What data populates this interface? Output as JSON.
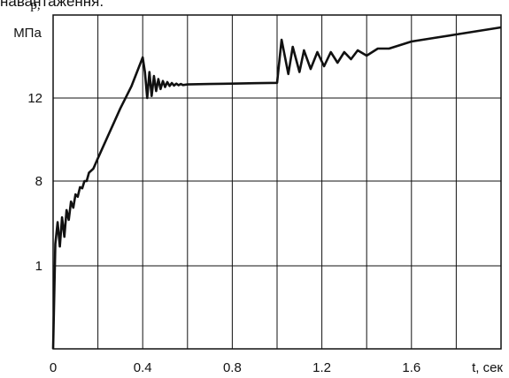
{
  "caption_fragment": "навантаження.",
  "chart_data": {
    "type": "line",
    "title": "",
    "xlabel": "t, сек",
    "ylabel": "p,",
    "ylabel_unit": "МПа",
    "xlim": [
      0,
      2.0
    ],
    "x_ticks": [
      "0",
      "0.4",
      "0.8",
      "1.2",
      "1.6"
    ],
    "y_ticks": [
      "1",
      "8",
      "12"
    ],
    "grid": true,
    "line_color": "#111111",
    "series": [
      {
        "values": [
          [
            0.0,
            0.0
          ],
          [
            0.01,
            2.8
          ],
          [
            0.02,
            4.6
          ],
          [
            0.03,
            2.6
          ],
          [
            0.04,
            5.0
          ],
          [
            0.05,
            3.4
          ],
          [
            0.06,
            5.6
          ],
          [
            0.07,
            4.8
          ],
          [
            0.08,
            6.3
          ],
          [
            0.09,
            5.8
          ],
          [
            0.1,
            6.9
          ],
          [
            0.11,
            6.7
          ],
          [
            0.12,
            7.5
          ],
          [
            0.13,
            7.4
          ],
          [
            0.14,
            8.0
          ],
          [
            0.15,
            8.0
          ],
          [
            0.16,
            8.4
          ],
          [
            0.18,
            8.6
          ],
          [
            0.2,
            9.1
          ],
          [
            0.25,
            10.3
          ],
          [
            0.3,
            11.5
          ],
          [
            0.35,
            12.6
          ],
          [
            0.4,
            13.8
          ],
          [
            0.41,
            13.3
          ],
          [
            0.42,
            12.0
          ],
          [
            0.43,
            13.3
          ],
          [
            0.44,
            12.1
          ],
          [
            0.45,
            13.1
          ],
          [
            0.46,
            12.35
          ],
          [
            0.47,
            12.95
          ],
          [
            0.48,
            12.45
          ],
          [
            0.49,
            12.85
          ],
          [
            0.5,
            12.55
          ],
          [
            0.51,
            12.8
          ],
          [
            0.52,
            12.6
          ],
          [
            0.53,
            12.75
          ],
          [
            0.54,
            12.62
          ],
          [
            0.55,
            12.72
          ],
          [
            0.56,
            12.64
          ],
          [
            0.57,
            12.7
          ],
          [
            0.58,
            12.65
          ],
          [
            0.6,
            12.68
          ],
          [
            0.7,
            12.7
          ],
          [
            0.8,
            12.72
          ],
          [
            0.9,
            12.74
          ],
          [
            1.0,
            12.76
          ],
          [
            1.02,
            14.3
          ],
          [
            1.05,
            13.2
          ],
          [
            1.07,
            14.1
          ],
          [
            1.1,
            13.3
          ],
          [
            1.12,
            14.0
          ],
          [
            1.15,
            13.45
          ],
          [
            1.18,
            13.95
          ],
          [
            1.21,
            13.55
          ],
          [
            1.24,
            13.95
          ],
          [
            1.27,
            13.65
          ],
          [
            1.3,
            13.95
          ],
          [
            1.33,
            13.75
          ],
          [
            1.36,
            14.0
          ],
          [
            1.4,
            13.85
          ],
          [
            1.45,
            14.05
          ],
          [
            1.5,
            14.05
          ],
          [
            1.55,
            14.15
          ],
          [
            1.6,
            14.25
          ],
          [
            1.7,
            14.35
          ],
          [
            1.8,
            14.45
          ],
          [
            1.9,
            14.55
          ],
          [
            2.0,
            14.65
          ]
        ]
      }
    ]
  }
}
